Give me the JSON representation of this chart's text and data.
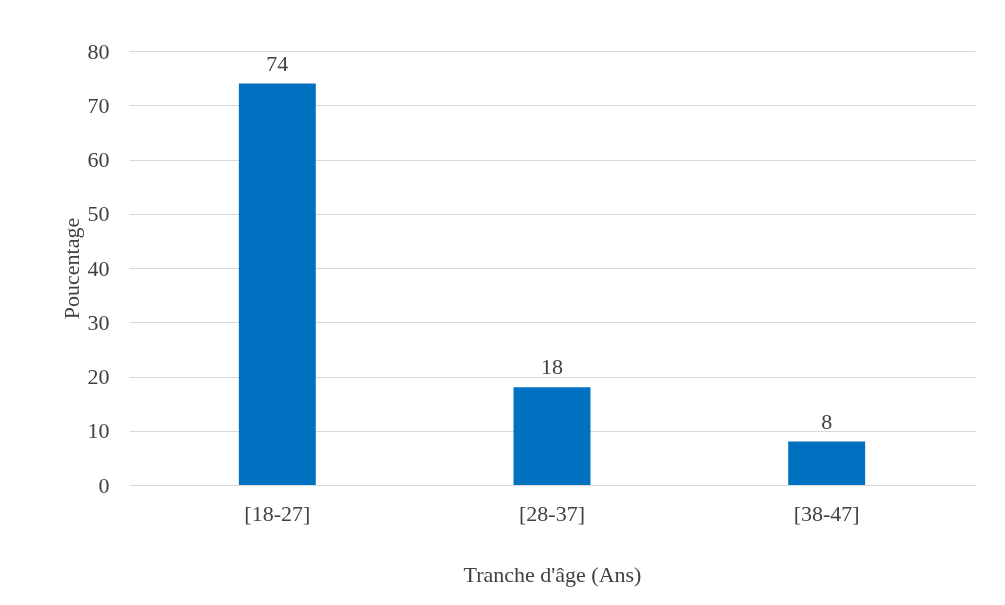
{
  "chart_data": {
    "type": "bar",
    "xlabel": "Tranche d'âge (Ans)",
    "ylabel": "Poucentage",
    "categories": [
      "[18-27]",
      "[28-37]",
      "[38-47]"
    ],
    "values": [
      74,
      18,
      8
    ],
    "color": "#0070c0",
    "ylim": [
      0,
      80
    ],
    "yticks": [
      0,
      10,
      20,
      30,
      40,
      50,
      60,
      70,
      80
    ],
    "grid": "y",
    "data_labels": true
  }
}
